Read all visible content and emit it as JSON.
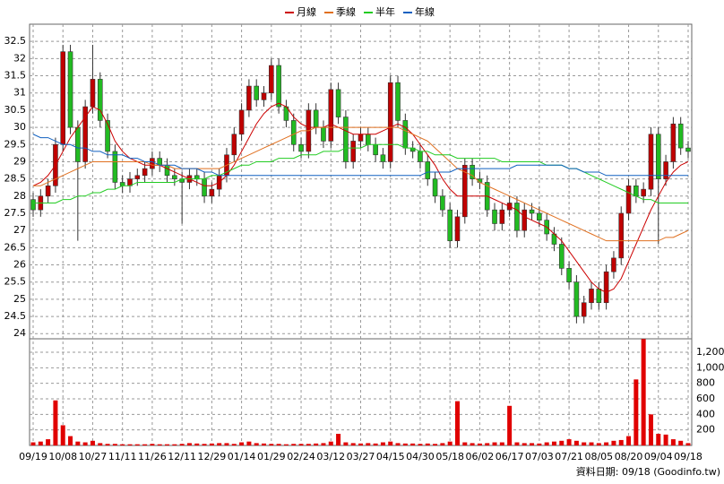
{
  "chart_data": [
    {
      "type": "candlestick",
      "categories": [
        "09/19",
        null,
        null,
        null,
        "10/08",
        null,
        null,
        null,
        "10/27",
        null,
        null,
        null,
        "11/11",
        null,
        null,
        null,
        "11/26",
        null,
        null,
        null,
        "12/11",
        null,
        null,
        null,
        "12/29",
        null,
        null,
        null,
        "01/14",
        null,
        null,
        null,
        "01/29",
        null,
        null,
        null,
        "02/24",
        null,
        null,
        null,
        "03/12",
        null,
        null,
        null,
        "03/27",
        null,
        null,
        null,
        "04/15",
        null,
        null,
        null,
        "04/30",
        null,
        null,
        null,
        "05/18",
        null,
        null,
        null,
        "06/02",
        null,
        null,
        null,
        "06/17",
        null,
        null,
        null,
        "07/03",
        null,
        null,
        null,
        "07/21",
        null,
        null,
        null,
        "08/05",
        null,
        null,
        null,
        "08/20",
        null,
        null,
        null,
        "09/04",
        null,
        null,
        null,
        "09/18"
      ],
      "open": [
        27.9,
        27.6,
        28.0,
        28.3,
        29.5,
        32.2,
        30.0,
        29.0,
        30.6,
        31.4,
        30.2,
        29.3,
        28.4,
        28.3,
        28.5,
        28.6,
        28.8,
        29.1,
        28.9,
        28.6,
        28.5,
        28.4,
        28.6,
        28.5,
        28.0,
        28.2,
        28.6,
        29.2,
        29.8,
        30.5,
        31.2,
        30.8,
        31.0,
        31.8,
        30.6,
        30.2,
        29.5,
        29.3,
        30.5,
        30.0,
        29.6,
        31.1,
        30.3,
        29.0,
        29.6,
        29.8,
        29.5,
        29.2,
        29.0,
        31.3,
        30.2,
        29.4,
        29.3,
        29.0,
        28.5,
        28.0,
        27.6,
        26.7,
        27.4,
        28.9,
        28.5,
        28.4,
        27.6,
        27.2,
        27.6,
        27.8,
        27.0,
        27.6,
        27.5,
        27.3,
        26.9,
        26.6,
        25.9,
        25.5,
        24.5,
        24.9,
        25.3,
        24.9,
        25.8,
        26.2,
        27.5,
        28.3,
        28.0,
        28.2,
        29.8,
        28.5,
        29.0,
        30.1,
        29.4
      ],
      "high": [
        28.1,
        28.2,
        28.5,
        29.7,
        32.4,
        32.4,
        30.2,
        30.8,
        32.4,
        31.6,
        30.4,
        29.5,
        28.6,
        28.7,
        28.8,
        29.0,
        29.3,
        29.3,
        29.1,
        28.8,
        28.7,
        28.8,
        28.8,
        28.7,
        28.4,
        28.8,
        29.4,
        30.0,
        30.7,
        31.4,
        31.4,
        31.2,
        32.0,
        32.0,
        30.8,
        30.4,
        29.7,
        30.7,
        30.7,
        30.2,
        31.3,
        31.3,
        30.5,
        29.8,
        30.0,
        30.0,
        29.7,
        29.4,
        31.5,
        31.5,
        30.4,
        29.6,
        29.5,
        29.2,
        28.7,
        28.2,
        27.8,
        27.6,
        29.1,
        29.1,
        28.7,
        28.6,
        27.8,
        27.8,
        28.0,
        28.0,
        27.8,
        27.8,
        27.7,
        27.5,
        27.1,
        26.8,
        26.1,
        25.7,
        25.1,
        25.5,
        25.5,
        26.0,
        26.4,
        27.7,
        28.5,
        28.5,
        28.4,
        30.0,
        30.0,
        29.2,
        30.3,
        30.3,
        29.6
      ],
      "low": [
        27.4,
        27.4,
        27.8,
        28.1,
        29.3,
        29.8,
        26.7,
        28.8,
        30.4,
        30.0,
        29.1,
        28.2,
        28.1,
        28.1,
        28.3,
        28.4,
        28.6,
        28.7,
        28.4,
        28.3,
        27.2,
        28.2,
        28.3,
        27.8,
        27.8,
        28.0,
        28.4,
        29.0,
        29.6,
        30.3,
        30.6,
        30.6,
        30.8,
        30.4,
        30.0,
        29.3,
        29.1,
        29.1,
        29.8,
        29.4,
        29.4,
        30.1,
        28.8,
        28.8,
        29.4,
        29.3,
        29.0,
        28.8,
        28.8,
        30.0,
        29.2,
        29.1,
        28.8,
        28.3,
        27.8,
        27.4,
        26.5,
        26.5,
        27.2,
        28.3,
        28.2,
        27.4,
        27.0,
        27.0,
        27.4,
        26.8,
        26.8,
        27.3,
        27.1,
        26.7,
        26.4,
        25.7,
        25.3,
        24.3,
        24.3,
        24.7,
        24.7,
        24.7,
        25.6,
        26.0,
        27.3,
        27.8,
        27.8,
        28.0,
        26.6,
        28.3,
        28.8,
        29.2,
        29.1
      ],
      "close": [
        27.6,
        28.0,
        28.3,
        29.5,
        32.2,
        30.0,
        29.0,
        30.6,
        31.4,
        30.2,
        29.3,
        28.4,
        28.3,
        28.5,
        28.6,
        28.8,
        29.1,
        28.9,
        28.6,
        28.5,
        28.4,
        28.6,
        28.5,
        28.0,
        28.2,
        28.6,
        29.2,
        29.8,
        30.5,
        31.2,
        30.8,
        31.0,
        31.8,
        30.6,
        30.2,
        29.5,
        29.3,
        30.5,
        30.0,
        29.6,
        31.1,
        30.3,
        29.0,
        29.6,
        29.8,
        29.5,
        29.2,
        29.0,
        31.3,
        30.2,
        29.4,
        29.3,
        29.0,
        28.5,
        28.0,
        27.6,
        26.7,
        27.4,
        28.9,
        28.5,
        28.4,
        27.6,
        27.2,
        27.6,
        27.8,
        27.0,
        27.6,
        27.5,
        27.3,
        26.9,
        26.6,
        25.9,
        25.5,
        24.5,
        24.9,
        25.3,
        24.9,
        25.8,
        26.2,
        27.5,
        28.3,
        28.0,
        28.2,
        29.8,
        28.5,
        29.0,
        30.1,
        29.4,
        29.3
      ],
      "up_color": "#c00000",
      "down_color": "#22bb22",
      "series": [
        {
          "name": "月線",
          "color": "#cc0000",
          "values": [
            28.3,
            28.4,
            28.6,
            28.9,
            29.3,
            29.7,
            30.0,
            30.3,
            30.6,
            30.5,
            30.1,
            29.6,
            29.3,
            29.1,
            29.0,
            28.9,
            28.9,
            28.9,
            28.8,
            28.7,
            28.6,
            28.5,
            28.4,
            28.3,
            28.3,
            28.4,
            28.6,
            28.9,
            29.3,
            29.7,
            30.1,
            30.4,
            30.6,
            30.7,
            30.6,
            30.3,
            30.1,
            30.0,
            30.0,
            30.0,
            30.1,
            30.0,
            29.9,
            29.8,
            29.8,
            29.8,
            29.8,
            29.9,
            30.0,
            30.1,
            30.0,
            29.8,
            29.5,
            29.2,
            28.9,
            28.5,
            28.2,
            28.0,
            28.0,
            28.0,
            28.0,
            28.0,
            27.9,
            27.8,
            27.7,
            27.6,
            27.4,
            27.3,
            27.2,
            27.1,
            26.9,
            26.7,
            26.4,
            26.1,
            25.8,
            25.5,
            25.3,
            25.2,
            25.3,
            25.6,
            26.1,
            26.6,
            27.1,
            27.6,
            28.0,
            28.4,
            28.7,
            28.9,
            29.0
          ]
        },
        {
          "name": "季線",
          "color": "#e07020",
          "values": [
            28.3,
            28.3,
            28.4,
            28.5,
            28.6,
            28.7,
            28.8,
            28.9,
            29.0,
            29.0,
            29.0,
            29.0,
            29.0,
            29.0,
            29.0,
            29.0,
            28.9,
            28.9,
            28.9,
            28.8,
            28.8,
            28.8,
            28.8,
            28.8,
            28.8,
            28.8,
            28.9,
            29.0,
            29.1,
            29.2,
            29.3,
            29.4,
            29.5,
            29.6,
            29.7,
            29.8,
            29.9,
            29.9,
            30.0,
            30.0,
            30.0,
            30.0,
            30.0,
            30.0,
            30.0,
            30.0,
            30.0,
            30.0,
            30.0,
            30.0,
            29.9,
            29.8,
            29.7,
            29.6,
            29.4,
            29.2,
            29.0,
            28.8,
            28.7,
            28.6,
            28.4,
            28.3,
            28.2,
            28.1,
            28.0,
            27.9,
            27.8,
            27.7,
            27.6,
            27.5,
            27.4,
            27.3,
            27.2,
            27.1,
            27.0,
            26.9,
            26.8,
            26.7,
            26.7,
            26.7,
            26.7,
            26.7,
            26.7,
            26.7,
            26.7,
            26.8,
            26.8,
            26.9,
            27.0
          ]
        },
        {
          "name": "半年",
          "color": "#22cc22",
          "values": [
            27.8,
            27.8,
            27.8,
            27.8,
            27.9,
            27.9,
            28.0,
            28.0,
            28.1,
            28.1,
            28.2,
            28.2,
            28.3,
            28.3,
            28.4,
            28.4,
            28.4,
            28.4,
            28.4,
            28.4,
            28.5,
            28.5,
            28.5,
            28.5,
            28.6,
            28.6,
            28.7,
            28.8,
            28.9,
            28.9,
            29.0,
            29.0,
            29.0,
            29.1,
            29.1,
            29.1,
            29.2,
            29.2,
            29.2,
            29.3,
            29.3,
            29.3,
            29.4,
            29.4,
            29.4,
            29.5,
            29.5,
            29.5,
            29.5,
            29.5,
            29.4,
            29.4,
            29.3,
            29.3,
            29.2,
            29.2,
            29.2,
            29.1,
            29.1,
            29.1,
            29.1,
            29.1,
            29.1,
            29.0,
            29.0,
            29.0,
            29.0,
            29.0,
            29.0,
            28.9,
            28.9,
            28.9,
            28.8,
            28.8,
            28.7,
            28.6,
            28.5,
            28.4,
            28.3,
            28.2,
            28.1,
            28.0,
            27.9,
            27.9,
            27.8,
            27.8,
            27.8,
            27.8,
            27.8
          ]
        },
        {
          "name": "年線",
          "color": "#1060c0",
          "values": [
            29.8,
            29.7,
            29.7,
            29.6,
            29.5,
            29.5,
            29.4,
            29.4,
            29.3,
            29.3,
            29.2,
            29.2,
            29.2,
            29.1,
            29.1,
            29.0,
            29.0,
            28.9,
            28.9,
            28.9,
            28.8,
            28.8,
            28.8,
            28.7,
            28.7,
            28.6,
            28.6,
            28.6,
            28.6,
            28.6,
            28.6,
            28.6,
            28.6,
            28.6,
            28.6,
            28.6,
            28.6,
            28.6,
            28.6,
            28.6,
            28.6,
            28.6,
            28.6,
            28.6,
            28.6,
            28.6,
            28.6,
            28.6,
            28.6,
            28.6,
            28.6,
            28.6,
            28.6,
            28.7,
            28.7,
            28.7,
            28.7,
            28.8,
            28.8,
            28.8,
            28.8,
            28.8,
            28.8,
            28.8,
            28.8,
            28.9,
            28.9,
            28.9,
            28.9,
            28.9,
            28.9,
            28.9,
            28.8,
            28.8,
            28.7,
            28.7,
            28.7,
            28.6,
            28.6,
            28.6,
            28.6,
            28.6,
            28.6,
            28.6,
            28.6,
            28.6,
            28.6,
            28.6,
            28.6
          ]
        }
      ],
      "ylim": [
        23.85,
        33
      ],
      "yticks": [
        24,
        24.5,
        25,
        25.5,
        26,
        26.5,
        27,
        27.5,
        28,
        28.5,
        29,
        29.5,
        30,
        30.5,
        31,
        31.5,
        32,
        32.5
      ],
      "grid": true,
      "legend": "top"
    },
    {
      "type": "bar",
      "color": "#e00000",
      "values": [
        40,
        50,
        80,
        580,
        260,
        120,
        50,
        40,
        60,
        30,
        20,
        20,
        15,
        15,
        15,
        15,
        20,
        15,
        15,
        15,
        20,
        30,
        25,
        20,
        25,
        30,
        30,
        20,
        40,
        50,
        30,
        25,
        20,
        20,
        15,
        20,
        20,
        20,
        25,
        30,
        50,
        150,
        40,
        30,
        25,
        30,
        25,
        40,
        50,
        30,
        25,
        25,
        20,
        25,
        20,
        30,
        50,
        570,
        40,
        30,
        25,
        30,
        40,
        40,
        510,
        40,
        30,
        30,
        25,
        40,
        50,
        60,
        80,
        60,
        40,
        40,
        30,
        40,
        60,
        70,
        120,
        850,
        1370,
        400,
        150,
        140,
        80,
        60,
        30
      ],
      "ylim": [
        0,
        1373
      ],
      "yticks": [
        200,
        400,
        600,
        800,
        {
          "value": 1000,
          "label": "1,000"
        },
        {
          "value": 1200,
          "label": "1,200"
        }
      ],
      "grid": true
    }
  ],
  "footnote": "資料日期: 09/18 (Goodinfo.tw)"
}
